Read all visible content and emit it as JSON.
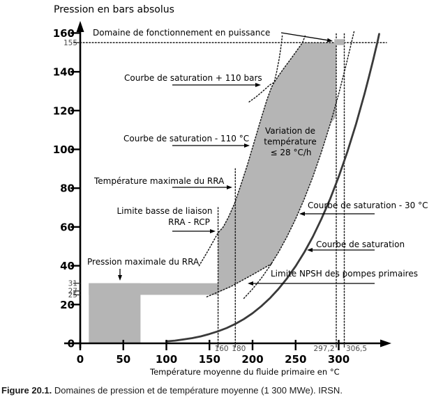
{
  "figure": {
    "caption_label": "Figure 20.1.",
    "caption_text": " Domaines de pression et de température moyenne (1 300 MWe). IRSN."
  },
  "chart_data": {
    "type": "area",
    "title": "Pression en bars absolus",
    "xlabel": "Température moyenne du fluide primaire en °C",
    "ylabel": "Pression en bars absolus",
    "xlim": [
      0,
      360
    ],
    "ylim": [
      0,
      168
    ],
    "grid": false,
    "legend": "none",
    "colors": {
      "region": "#b5b5b5",
      "marker": "#b3b3b3",
      "curve": "#3a3a3a",
      "dotted": "#1a1a1a",
      "minor": "#4d4d4d",
      "axis": "#000000"
    },
    "x_major_ticks": [
      0,
      50,
      100,
      150,
      200,
      250,
      300
    ],
    "x_minor_ticks": [
      {
        "value": 160,
        "label": "160",
        "align": "center"
      },
      {
        "value": 180,
        "label": "180",
        "align": "center"
      },
      {
        "value": 297.2,
        "label": "297,2",
        "align": "before"
      },
      {
        "value": 306.5,
        "label": "306,5",
        "align": "after"
      }
    ],
    "y_major_ticks": [
      0,
      20,
      40,
      60,
      80,
      100,
      120,
      140,
      160
    ],
    "y_minor_ticks": [
      {
        "value": 155,
        "label": "155"
      },
      {
        "value": 31,
        "label": "31"
      },
      {
        "value": 27,
        "label": "27"
      },
      {
        "value": 25,
        "label": "25"
      }
    ],
    "reference_lines": {
      "horizontal": [
        {
          "p": 155,
          "name": "ligne-155-bars"
        }
      ],
      "vertical": [
        {
          "t": 160,
          "p_top": 70,
          "name": "ligne-160-degC"
        },
        {
          "t": 180,
          "p_top": 90,
          "name": "ligne-180-degC"
        },
        {
          "t": 297.2,
          "p_top": 160.5,
          "name": "ligne-297-2-degC"
        },
        {
          "t": 306.5,
          "p_top": 160.5,
          "name": "ligne-306-5-degC"
        }
      ]
    },
    "series": [
      {
        "name": "courbe-de-saturation",
        "style": "solid",
        "points": [
          [
            100,
            1
          ],
          [
            110,
            1.4
          ],
          [
            120,
            2
          ],
          [
            130,
            2.7
          ],
          [
            140,
            3.6
          ],
          [
            150,
            4.8
          ],
          [
            160,
            6.2
          ],
          [
            170,
            7.9
          ],
          [
            180,
            10
          ],
          [
            190,
            12.5
          ],
          [
            200,
            15.5
          ],
          [
            210,
            19.1
          ],
          [
            220,
            23.2
          ],
          [
            230,
            28
          ],
          [
            240,
            33.5
          ],
          [
            250,
            39.8
          ],
          [
            260,
            46.9
          ],
          [
            270,
            55
          ],
          [
            280,
            64.2
          ],
          [
            290,
            74.4
          ],
          [
            300,
            85.9
          ],
          [
            310,
            98.7
          ],
          [
            320,
            112.9
          ],
          [
            330,
            128.6
          ],
          [
            335,
            137.2
          ],
          [
            340,
            146.1
          ],
          [
            343,
            151.7
          ],
          [
            345,
            155.4
          ],
          [
            347,
            159.5
          ]
        ]
      },
      {
        "name": "courbe-de-saturation-moins-30-degC",
        "style": "dotted",
        "points": [
          [
            190,
            23.2
          ],
          [
            200,
            28
          ],
          [
            210,
            33.5
          ],
          [
            220,
            39.8
          ],
          [
            230,
            46.9
          ],
          [
            240,
            55
          ],
          [
            250,
            64.2
          ],
          [
            260,
            74.4
          ],
          [
            270,
            85.9
          ],
          [
            280,
            98.7
          ],
          [
            290,
            112.9
          ],
          [
            300,
            128.6
          ],
          [
            308,
            142.5
          ],
          [
            313,
            151.7
          ],
          [
            316,
            157.4
          ],
          [
            318,
            161
          ]
        ]
      },
      {
        "name": "courbe-de-saturation-moins-110-degC",
        "style": "dotted",
        "points": [
          [
            138,
            40
          ],
          [
            148,
            47.5
          ],
          [
            160,
            57
          ],
          [
            166,
            60
          ],
          [
            172,
            65
          ],
          [
            179,
            72
          ],
          [
            186,
            81
          ],
          [
            194,
            92
          ],
          [
            202,
            104
          ],
          [
            210,
            116
          ],
          [
            217,
            126
          ],
          [
            222,
            132
          ],
          [
            225,
            134.5
          ],
          [
            228,
            140
          ],
          [
            231,
            147
          ],
          [
            233,
            153
          ],
          [
            234.5,
            158.5
          ]
        ]
      },
      {
        "name": "courbe-de-saturation-plus-110-bars",
        "style": "dotted",
        "points": [
          [
            196,
            124.5
          ],
          [
            204,
            127
          ],
          [
            212,
            130
          ],
          [
            220,
            133.2
          ],
          [
            225,
            134.5
          ],
          [
            231,
            138.5
          ],
          [
            238,
            142.8
          ],
          [
            245,
            147
          ],
          [
            252,
            151.3
          ],
          [
            258,
            155
          ],
          [
            261,
            158.5
          ]
        ]
      },
      {
        "name": "limite-npsh-pompes-primaires",
        "style": "dotted",
        "points": [
          [
            147,
            24
          ],
          [
            175,
            29.3
          ],
          [
            200,
            35.4
          ],
          [
            222,
            41
          ]
        ]
      }
    ],
    "regions": [
      {
        "name": "bloc-pression-rra",
        "t": [
          10,
          70
        ],
        "p": [
          0,
          31
        ]
      },
      {
        "name": "bande-pression-maximale-rra",
        "t": [
          10,
          160
        ],
        "p": [
          25,
          31
        ]
      },
      {
        "name": "domaine-exploitation-variation-temperature",
        "polygon": [
          [
            160,
            26
          ],
          [
            160,
            57
          ],
          [
            166,
            60
          ],
          [
            172,
            65
          ],
          [
            179,
            72
          ],
          [
            186,
            81
          ],
          [
            194,
            92
          ],
          [
            202,
            104
          ],
          [
            210,
            116
          ],
          [
            217,
            126
          ],
          [
            222,
            132
          ],
          [
            225,
            134.5
          ],
          [
            231,
            138.5
          ],
          [
            238,
            142.8
          ],
          [
            245,
            147
          ],
          [
            252,
            151.3
          ],
          [
            258,
            155
          ],
          [
            297,
            155
          ],
          [
            297,
            117
          ],
          [
            290,
            112.9
          ],
          [
            280,
            98.7
          ],
          [
            270,
            85.9
          ],
          [
            260,
            74.4
          ],
          [
            250,
            64.2
          ],
          [
            240,
            55
          ],
          [
            230,
            46.9
          ],
          [
            222,
            41
          ],
          [
            200,
            35.4
          ],
          [
            175,
            29.3
          ],
          [
            160,
            26
          ]
        ]
      },
      {
        "name": "domaine-fonctionnement-puissance",
        "t": [
          295,
          306.5
        ],
        "p": [
          153.8,
          156.8
        ]
      }
    ],
    "annotations": [
      {
        "id": "domaine",
        "text": "Domaine de fonctionnement en puissance"
      },
      {
        "id": "plus110",
        "text": "Courbe de saturation + 110 bars"
      },
      {
        "id": "moins110",
        "text": "Courbe de saturation - 110 °C"
      },
      {
        "id": "tmax",
        "text": "Température maximale du RRA"
      },
      {
        "id": "liaison",
        "lines": [
          "Limite basse de liaison",
          "RRA - RCP"
        ]
      },
      {
        "id": "pmax",
        "text": "Pression maximale du RRA"
      },
      {
        "id": "variation",
        "lines": [
          "Variation de",
          "température",
          "≤ 28 °C/h"
        ]
      },
      {
        "id": "sat30",
        "text": "Courbe de saturation - 30 °C"
      },
      {
        "id": "sat",
        "text": "Courbe de saturation"
      },
      {
        "id": "npsh",
        "text": "Limite NPSH des pompes primaires"
      }
    ]
  }
}
